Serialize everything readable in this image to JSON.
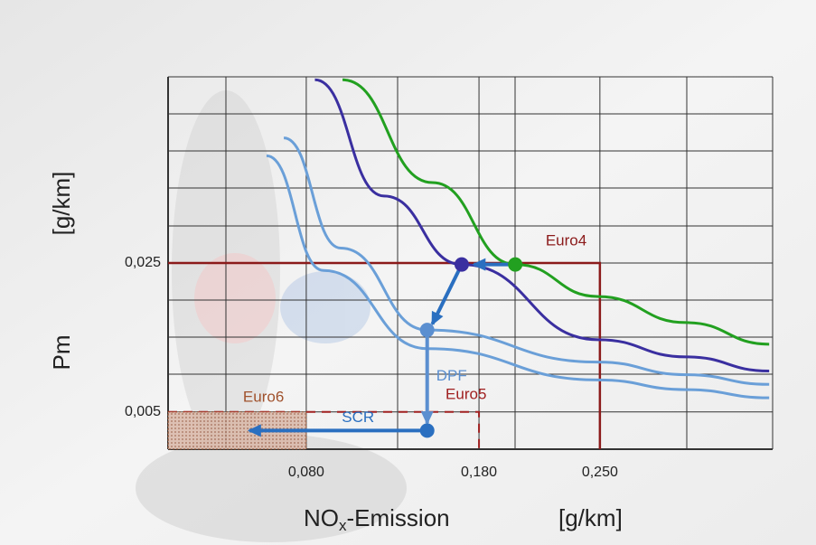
{
  "chart_data": {
    "type": "line",
    "x_label": {
      "main": "NO",
      "sub": "x",
      "rest": "-Emission",
      "unit": "[g/km]"
    },
    "y_label": {
      "main": "Pm",
      "unit": "[g/km]"
    },
    "xlim": [
      0,
      0.35
    ],
    "ylim": [
      0,
      0.05
    ],
    "xticks": [
      {
        "value": 0.08,
        "label": "0,080"
      },
      {
        "value": 0.18,
        "label": "0,180"
      },
      {
        "value": 0.25,
        "label": "0,250"
      }
    ],
    "yticks": [
      {
        "value": 0.005,
        "label": "0,005"
      },
      {
        "value": 0.025,
        "label": "0,025"
      }
    ],
    "grid": true,
    "series": [
      {
        "color": "#22a020",
        "x": [
          0.101,
          0.153,
          0.201,
          0.249,
          0.3,
          0.348
        ],
        "y": [
          0.0496,
          0.0358,
          0.0248,
          0.0205,
          0.017,
          0.0141
        ]
      },
      {
        "color": "#3a2fa0",
        "x": [
          0.085,
          0.125,
          0.17,
          0.249,
          0.3,
          0.348
        ],
        "y": [
          0.0496,
          0.034,
          0.0248,
          0.0147,
          0.0124,
          0.0105
        ]
      },
      {
        "color": "#6a9fd8",
        "x": [
          0.067,
          0.1,
          0.15,
          0.249,
          0.3,
          0.348
        ],
        "y": [
          0.0418,
          0.027,
          0.016,
          0.0117,
          0.01,
          0.0087
        ]
      },
      {
        "color": "#6a9fd8",
        "x": [
          0.057,
          0.09,
          0.15,
          0.249,
          0.3,
          0.348
        ],
        "y": [
          0.0394,
          0.024,
          0.0135,
          0.0093,
          0.008,
          0.0069
        ]
      }
    ],
    "points": [
      {
        "color": "#22a020",
        "x": 0.201,
        "y": 0.0248
      },
      {
        "color": "#3a2fa0",
        "x": 0.17,
        "y": 0.0248
      },
      {
        "color": "#5b8fd0",
        "x": 0.15,
        "y": 0.016
      },
      {
        "color": "#2a6fc0",
        "x": 0.15,
        "y": 0.0025
      }
    ],
    "arrows": [
      {
        "color": "#2a6fc0",
        "x": [
          0.201,
          0.177
        ],
        "y": [
          0.0248,
          0.0248
        ]
      },
      {
        "color": "#2a6fc0",
        "x": [
          0.17,
          0.153
        ],
        "y": [
          0.0248,
          0.0168
        ]
      },
      {
        "color": "#5b8fd0",
        "label": "DPF",
        "x": [
          0.15,
          0.15
        ],
        "y": [
          0.016,
          0.0035
        ]
      },
      {
        "color": "#2a6fc0",
        "label": "SCR",
        "x": [
          0.15,
          0.047
        ],
        "y": [
          0.0025,
          0.0025
        ]
      }
    ],
    "limits": [
      {
        "label": "Euro4",
        "x": 0.25,
        "y": 0.025,
        "color": "#8b1a1a"
      },
      {
        "label": "Euro5",
        "x": 0.18,
        "y": 0.005,
        "color": "#a02020"
      },
      {
        "label": "Euro6",
        "x": 0.08,
        "y": 0.005,
        "color": "#a0522d"
      }
    ]
  }
}
